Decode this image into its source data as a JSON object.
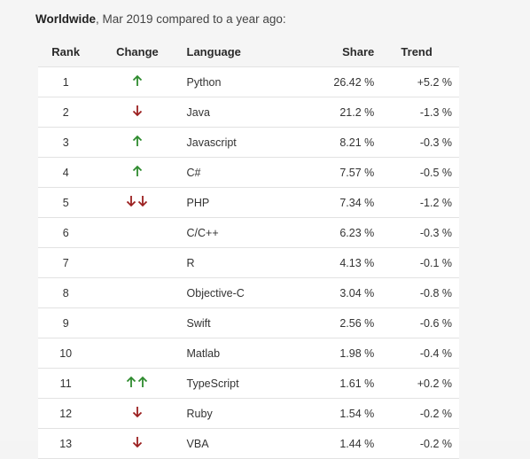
{
  "caption": {
    "region": "Worldwide",
    "rest": ", Mar 2019 compared to a year ago:"
  },
  "table": {
    "headers": {
      "rank": "Rank",
      "change": "Change",
      "language": "Language",
      "share": "Share",
      "trend": "Trend"
    },
    "rows": [
      {
        "rank": "1",
        "change": "up",
        "language": "Python",
        "share": "26.42 %",
        "trend": "+5.2 %"
      },
      {
        "rank": "2",
        "change": "down",
        "language": "Java",
        "share": "21.2 %",
        "trend": "-1.3 %"
      },
      {
        "rank": "3",
        "change": "up",
        "language": "Javascript",
        "share": "8.21 %",
        "trend": "-0.3 %"
      },
      {
        "rank": "4",
        "change": "up",
        "language": "C#",
        "share": "7.57 %",
        "trend": "-0.5 %"
      },
      {
        "rank": "5",
        "change": "down-down",
        "language": "PHP",
        "share": "7.34 %",
        "trend": "-1.2 %"
      },
      {
        "rank": "6",
        "change": "",
        "language": "C/C++",
        "share": "6.23 %",
        "trend": "-0.3 %"
      },
      {
        "rank": "7",
        "change": "",
        "language": "R",
        "share": "4.13 %",
        "trend": "-0.1 %"
      },
      {
        "rank": "8",
        "change": "",
        "language": "Objective-C",
        "share": "3.04 %",
        "trend": "-0.8 %"
      },
      {
        "rank": "9",
        "change": "",
        "language": "Swift",
        "share": "2.56 %",
        "trend": "-0.6 %"
      },
      {
        "rank": "10",
        "change": "",
        "language": "Matlab",
        "share": "1.98 %",
        "trend": "-0.4 %"
      },
      {
        "rank": "11",
        "change": "up-up",
        "language": "TypeScript",
        "share": "1.61 %",
        "trend": "+0.2 %"
      },
      {
        "rank": "12",
        "change": "down",
        "language": "Ruby",
        "share": "1.54 %",
        "trend": "-0.2 %"
      },
      {
        "rank": "13",
        "change": "down",
        "language": "VBA",
        "share": "1.44 %",
        "trend": "-0.2 %"
      }
    ]
  },
  "colors": {
    "up_arrow": "#2e8b2e",
    "down_arrow": "#9b1f1f"
  },
  "icons": {
    "up": "arrow-up-icon",
    "down": "arrow-down-icon"
  }
}
